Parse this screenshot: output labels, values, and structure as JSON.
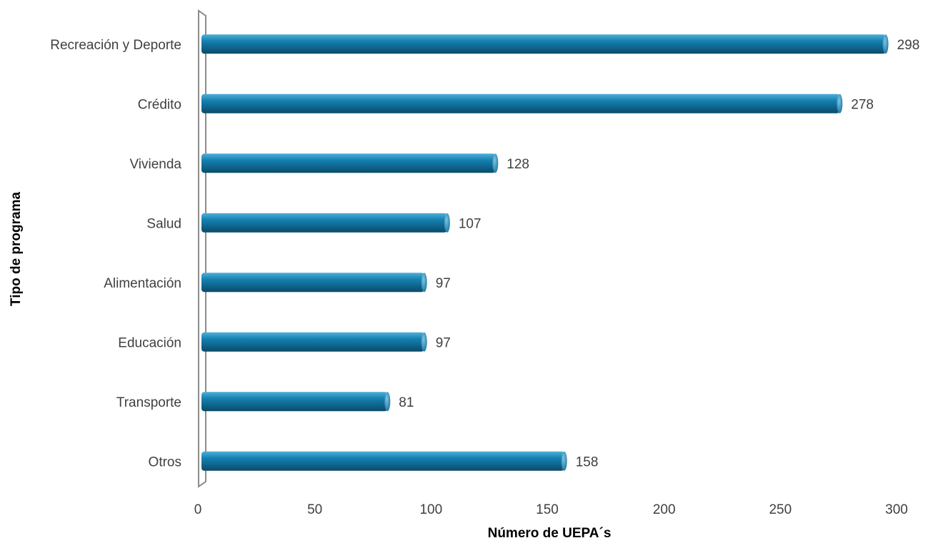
{
  "chart_data": {
    "type": "bar",
    "orientation": "horizontal",
    "style": "3d-cylinder",
    "categories": [
      "Recreación y Deporte",
      "Crédito",
      "Vivienda",
      "Salud",
      "Alimentación",
      "Educación",
      "Transporte",
      "Otros"
    ],
    "values": [
      298,
      278,
      128,
      107,
      97,
      97,
      81,
      158
    ],
    "value_labels": [
      "298",
      "278",
      "128",
      "107",
      "97",
      "97",
      "81",
      "158"
    ],
    "xlabel": "Número de UEPA´s",
    "ylabel": "Tipo de programa",
    "xlim": [
      0,
      300
    ],
    "xticks": [
      "0",
      "50",
      "100",
      "150",
      "200",
      "250",
      "300"
    ],
    "grid": false,
    "legend": "none",
    "colors": {
      "bar_top": "#4fb0d8",
      "bar_mid": "#1480b0",
      "bar_bottom": "#0b4a6a",
      "axis_wall": "#8c8c8c",
      "text": "#404040"
    }
  }
}
